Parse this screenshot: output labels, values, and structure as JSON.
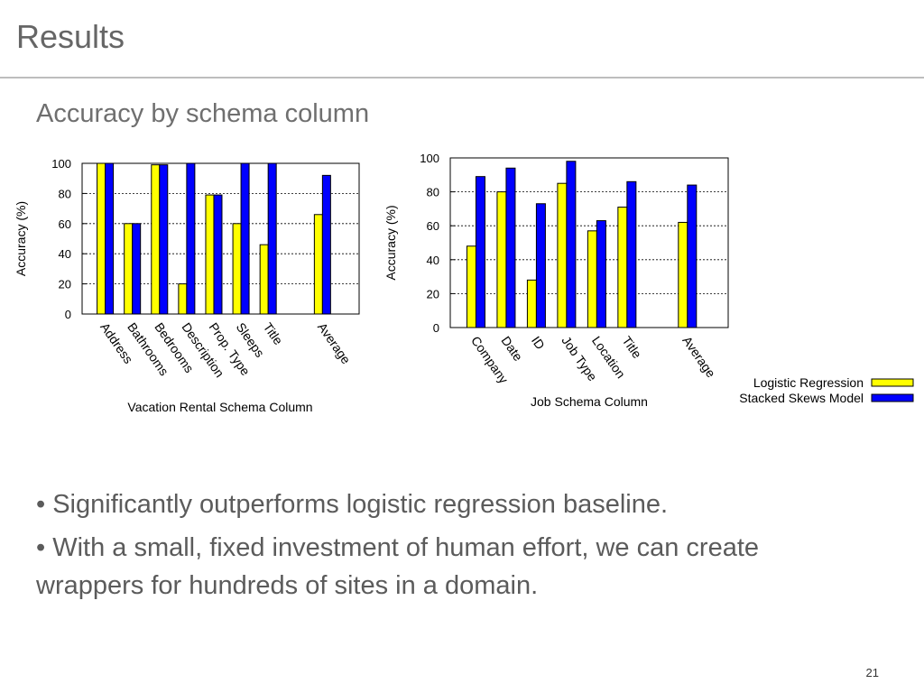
{
  "slide": {
    "title": "Results",
    "subtitle": "Accuracy by schema column",
    "bullets": [
      "• Significantly outperforms logistic regression baseline.",
      "• With a small, fixed investment of human effort, we can create wrappers for hundreds of sites in a domain."
    ],
    "page_number": "21"
  },
  "chart_data": [
    {
      "type": "bar",
      "categories": [
        "Address",
        "Bathrooms",
        "Bedrooms",
        "Description",
        "Prop. Type",
        "Sleeps",
        "Title",
        "",
        "Average"
      ],
      "series": [
        {
          "name": "Logistic Regression",
          "color": "#ffff00",
          "values": [
            100,
            60,
            99,
            20,
            79,
            60,
            46,
            null,
            66
          ]
        },
        {
          "name": "Stacked Skews Model",
          "color": "#0000ff",
          "values": [
            100,
            60,
            99,
            100,
            79,
            100,
            100,
            null,
            92
          ]
        }
      ],
      "xlabel": "Vacation Rental Schema Column",
      "ylabel": "Accuracy (%)",
      "ylim": [
        0,
        100
      ],
      "yticks": [
        0,
        20,
        40,
        60,
        80,
        100
      ],
      "grid": true
    },
    {
      "type": "bar",
      "categories": [
        "Company",
        "Date",
        "ID",
        "Job Type",
        "Location",
        "Title",
        "",
        "Average"
      ],
      "series": [
        {
          "name": "Logistic Regression",
          "color": "#ffff00",
          "values": [
            48,
            80,
            28,
            85,
            57,
            71,
            null,
            62
          ]
        },
        {
          "name": "Stacked Skews Model",
          "color": "#0000ff",
          "values": [
            89,
            94,
            73,
            98,
            63,
            86,
            null,
            84
          ]
        }
      ],
      "xlabel": "Job Schema Column",
      "ylabel": "Accuracy (%)",
      "ylim": [
        0,
        100
      ],
      "yticks": [
        0,
        20,
        40,
        60,
        80,
        100
      ],
      "grid": true,
      "legend": "bottom-right"
    }
  ]
}
